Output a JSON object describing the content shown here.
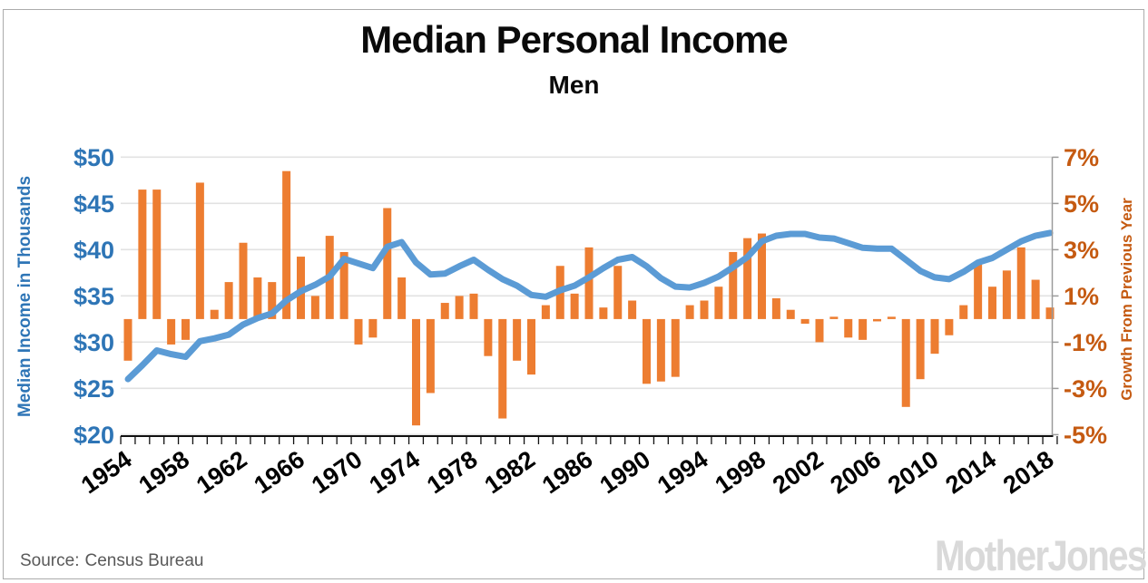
{
  "header": {
    "title": "Median Personal Income",
    "subtitle": "Men"
  },
  "axes": {
    "left_title": "Median Income in Thousands",
    "left_ticks": [
      "$50",
      "$45",
      "$40",
      "$35",
      "$30",
      "$25",
      "$20"
    ],
    "left_values": [
      50,
      45,
      40,
      35,
      30,
      25,
      20
    ],
    "right_title": "Growth From Previous Year",
    "right_ticks": [
      "7%",
      "5%",
      "3%",
      "1%",
      "-1%",
      "-3%",
      "-5%"
    ],
    "right_values": [
      7,
      5,
      3,
      1,
      -1,
      -3,
      -5
    ],
    "x_tick_labels": [
      "1954",
      "1958",
      "1962",
      "1966",
      "1970",
      "1974",
      "1978",
      "1982",
      "1986",
      "1990",
      "1994",
      "1998",
      "2002",
      "2006",
      "2010",
      "2014",
      "2018"
    ]
  },
  "footer": {
    "source_label": "Source:",
    "source_value": "Census Bureau",
    "logo_text": "MotherJones"
  },
  "colors": {
    "line_blue": "#5B9BD5",
    "left_axis_blue": "#2E75B6",
    "bar_orange": "#ED7D31",
    "right_axis_orange": "#C55A11",
    "gridline": "#E2E2E2",
    "right_axis_line": "#9B9B9B",
    "x_axis_line": "#111111",
    "title_black": "#0A0A0A",
    "source_gray": "#595959",
    "logo_gray": "#D9D9D9"
  },
  "chart_data": {
    "type": "combo",
    "title": "Median Personal Income",
    "subtitle": "Men",
    "x": [
      1954,
      1955,
      1956,
      1957,
      1958,
      1959,
      1960,
      1961,
      1962,
      1963,
      1964,
      1965,
      1966,
      1967,
      1968,
      1969,
      1970,
      1971,
      1972,
      1973,
      1974,
      1975,
      1976,
      1977,
      1978,
      1979,
      1980,
      1981,
      1982,
      1983,
      1984,
      1985,
      1986,
      1987,
      1988,
      1989,
      1990,
      1991,
      1992,
      1993,
      1994,
      1995,
      1996,
      1997,
      1998,
      1999,
      2000,
      2001,
      2002,
      2003,
      2004,
      2005,
      2006,
      2007,
      2008,
      2009,
      2010,
      2011,
      2012,
      2013,
      2014,
      2015,
      2016,
      2017,
      2018
    ],
    "series": [
      {
        "name": "Median Income in Thousands",
        "type": "line",
        "axis": "left",
        "unit": "thousand dollars",
        "values": [
          26.0,
          27.5,
          29.1,
          28.7,
          28.4,
          30.1,
          30.4,
          30.8,
          31.9,
          32.6,
          33.1,
          34.5,
          35.5,
          36.2,
          37.1,
          39.0,
          38.5,
          38.0,
          40.3,
          40.8,
          38.6,
          37.3,
          37.4,
          38.2,
          38.9,
          37.8,
          36.8,
          36.1,
          35.1,
          34.9,
          35.6,
          36.1,
          37.0,
          38.0,
          38.9,
          39.2,
          38.2,
          36.9,
          36.0,
          35.9,
          36.4,
          37.1,
          38.1,
          39.2,
          40.9,
          41.5,
          41.7,
          41.7,
          41.3,
          41.2,
          40.7,
          40.2,
          40.1,
          40.1,
          38.9,
          37.7,
          37.0,
          36.8,
          37.6,
          38.6,
          39.1,
          40.0,
          40.9,
          41.5,
          41.8
        ]
      },
      {
        "name": "Growth From Previous Year",
        "type": "bar",
        "axis": "right",
        "unit": "percent",
        "values": [
          -1.8,
          5.6,
          5.6,
          -1.1,
          -0.9,
          5.9,
          0.4,
          1.6,
          3.3,
          1.8,
          1.6,
          6.4,
          2.7,
          1.0,
          3.6,
          2.9,
          -1.1,
          -0.8,
          4.8,
          1.8,
          -4.6,
          -3.2,
          0.7,
          1.0,
          1.1,
          -1.6,
          -4.3,
          -1.8,
          -2.4,
          0.6,
          2.3,
          1.1,
          3.1,
          0.5,
          2.3,
          0.8,
          -2.8,
          -2.7,
          -2.5,
          0.6,
          0.8,
          1.4,
          2.9,
          3.5,
          3.7,
          0.9,
          0.4,
          -0.2,
          -1.0,
          0.1,
          -0.8,
          -0.9,
          -0.1,
          0.1,
          -3.8,
          -2.6,
          -1.5,
          -0.7,
          0.6,
          2.4,
          1.4,
          2.1,
          3.1,
          1.7,
          0.5
        ]
      }
    ],
    "left_ylim": [
      20,
      50
    ],
    "right_ylim": [
      -5,
      7
    ],
    "grid": true,
    "legend_position": "none"
  }
}
